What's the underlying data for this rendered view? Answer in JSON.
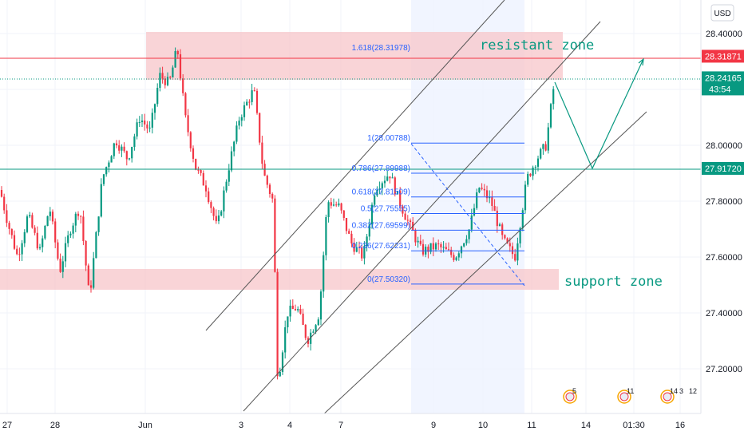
{
  "header": {
    "currency": "USD"
  },
  "chart_data": {
    "type": "candlestick",
    "y_axis": {
      "ticks": [
        "28.40000",
        "28.20000",
        "28.00000",
        "27.80000",
        "27.60000",
        "27.40000",
        "27.20000"
      ],
      "tick_values": [
        28.4,
        28.2,
        28.0,
        27.8,
        27.6,
        27.4,
        27.2
      ],
      "range": [
        27.04,
        28.52
      ]
    },
    "x_axis": {
      "ticks": [
        "27",
        "28",
        "Jun",
        "3",
        "4",
        "7",
        "9",
        "10",
        "11",
        "14",
        "01:30",
        "16"
      ]
    },
    "price_tags": [
      {
        "label": "28.31871",
        "value": 28.31871,
        "color": "#f23645"
      },
      {
        "label": "28.24165",
        "value": 28.24165,
        "color": "#089981",
        "countdown": "43:54"
      },
      {
        "label": "27.91720",
        "value": 27.9172,
        "color": "#089981"
      }
    ],
    "fib_levels": [
      {
        "label": "1.618(28.31978)",
        "value": 28.31978
      },
      {
        "label": "1(28.00788)",
        "value": 28.00788
      },
      {
        "label": "0.786(27.89988)",
        "value": 27.89988
      },
      {
        "label": "0.618(27.81509)",
        "value": 27.81509
      },
      {
        "label": "0.5(27.75555)",
        "value": 27.75555
      },
      {
        "label": "0.382(27.69599)",
        "value": 27.69599
      },
      {
        "label": "0.236(27.62231)",
        "value": 27.62231
      },
      {
        "label": "0(27.50320)",
        "value": 27.5032
      }
    ],
    "zones": [
      {
        "label": "resistant zone",
        "from": 28.25,
        "to": 28.4
      },
      {
        "label": "support zone",
        "from": 27.49,
        "to": 27.56
      }
    ],
    "events": [
      {
        "label": "5"
      },
      {
        "label": "11"
      },
      {
        "label": "14"
      },
      {
        "label": "3"
      },
      {
        "label": "12"
      }
    ],
    "colors": {
      "up": "#089981",
      "down": "#f23645",
      "fib": "#2962ff",
      "zone": "#f7c5c9"
    }
  }
}
